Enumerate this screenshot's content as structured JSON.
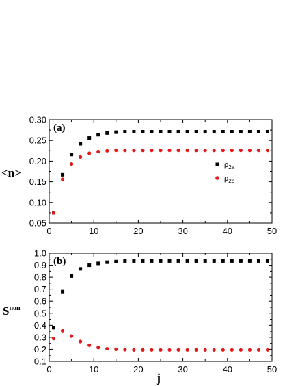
{
  "chart_data": [
    {
      "type": "scatter",
      "panel_label": "(a)",
      "ylabel": "<n>",
      "xlabel": "",
      "xlim": [
        0,
        50
      ],
      "ylim": [
        0.05,
        0.3
      ],
      "xticks": [
        0,
        10,
        20,
        30,
        40,
        50
      ],
      "xtick_labels": [
        "0",
        "10",
        "20",
        "30",
        "40",
        "50"
      ],
      "yticks": [
        0.05,
        0.1,
        0.15,
        0.2,
        0.25,
        0.3
      ],
      "ytick_labels": [
        "0.05",
        "0.10",
        "0.15",
        "0.20",
        "0.25",
        "0.30"
      ],
      "grid": false,
      "legend_position": "right",
      "series": [
        {
          "name": "ρ2a",
          "name_base": "ρ",
          "name_sub": "2a",
          "marker": "square",
          "color": "#000000",
          "x": [
            1,
            3,
            5,
            7,
            9,
            11,
            13,
            15,
            17,
            19,
            21,
            23,
            25,
            27,
            29,
            31,
            33,
            35,
            37,
            39,
            41,
            43,
            45,
            47,
            49
          ],
          "y": [
            0.075,
            0.167,
            0.216,
            0.242,
            0.256,
            0.264,
            0.268,
            0.27,
            0.271,
            0.271,
            0.271,
            0.271,
            0.271,
            0.271,
            0.271,
            0.271,
            0.271,
            0.271,
            0.271,
            0.271,
            0.271,
            0.271,
            0.271,
            0.271,
            0.271
          ]
        },
        {
          "name": "ρ2b",
          "name_base": "ρ",
          "name_sub": "2b",
          "marker": "circle",
          "color": "#e0191b",
          "x": [
            1,
            3,
            5,
            7,
            9,
            11,
            13,
            15,
            17,
            19,
            21,
            23,
            25,
            27,
            29,
            31,
            33,
            35,
            37,
            39,
            41,
            43,
            45,
            47,
            49
          ],
          "y": [
            0.075,
            0.156,
            0.193,
            0.21,
            0.219,
            0.223,
            0.225,
            0.226,
            0.226,
            0.226,
            0.226,
            0.226,
            0.226,
            0.226,
            0.226,
            0.226,
            0.226,
            0.226,
            0.226,
            0.226,
            0.226,
            0.226,
            0.226,
            0.226,
            0.226
          ]
        }
      ]
    },
    {
      "type": "scatter",
      "panel_label": "(b)",
      "ylabel_base": "S",
      "ylabel_sup": "non",
      "xlabel": "j",
      "xlim": [
        0,
        50
      ],
      "ylim": [
        0.1,
        1.0
      ],
      "xticks": [
        0,
        10,
        20,
        30,
        40,
        50
      ],
      "xtick_labels": [
        "0",
        "10",
        "20",
        "30",
        "40",
        "50"
      ],
      "yticks": [
        0.1,
        0.2,
        0.3,
        0.4,
        0.5,
        0.6,
        0.7,
        0.8,
        0.9,
        1.0
      ],
      "ytick_labels": [
        "0.1",
        "0.2",
        "0.3",
        "0.4",
        "0.5",
        "0.6",
        "0.7",
        "0.8",
        "0.9",
        "1.0"
      ],
      "grid": false,
      "series": [
        {
          "marker": "square",
          "color": "#000000",
          "x": [
            1,
            3,
            5,
            7,
            9,
            11,
            13,
            15,
            17,
            19,
            21,
            23,
            25,
            27,
            29,
            31,
            33,
            35,
            37,
            39,
            41,
            43,
            45,
            47,
            49
          ],
          "y": [
            0.38,
            0.68,
            0.81,
            0.87,
            0.9,
            0.915,
            0.925,
            0.93,
            0.935,
            0.935,
            0.935,
            0.935,
            0.935,
            0.935,
            0.935,
            0.935,
            0.935,
            0.935,
            0.935,
            0.935,
            0.935,
            0.935,
            0.935,
            0.935,
            0.935
          ]
        },
        {
          "marker": "circle",
          "color": "#e0191b",
          "x": [
            1,
            3,
            5,
            7,
            9,
            11,
            13,
            15,
            17,
            19,
            21,
            23,
            25,
            27,
            29,
            31,
            33,
            35,
            37,
            39,
            41,
            43,
            45,
            47,
            49
          ],
          "y": [
            0.29,
            0.355,
            0.31,
            0.265,
            0.235,
            0.215,
            0.205,
            0.2,
            0.197,
            0.195,
            0.195,
            0.195,
            0.195,
            0.195,
            0.195,
            0.195,
            0.195,
            0.195,
            0.195,
            0.195,
            0.195,
            0.195,
            0.195,
            0.195,
            0.195
          ]
        }
      ]
    }
  ]
}
